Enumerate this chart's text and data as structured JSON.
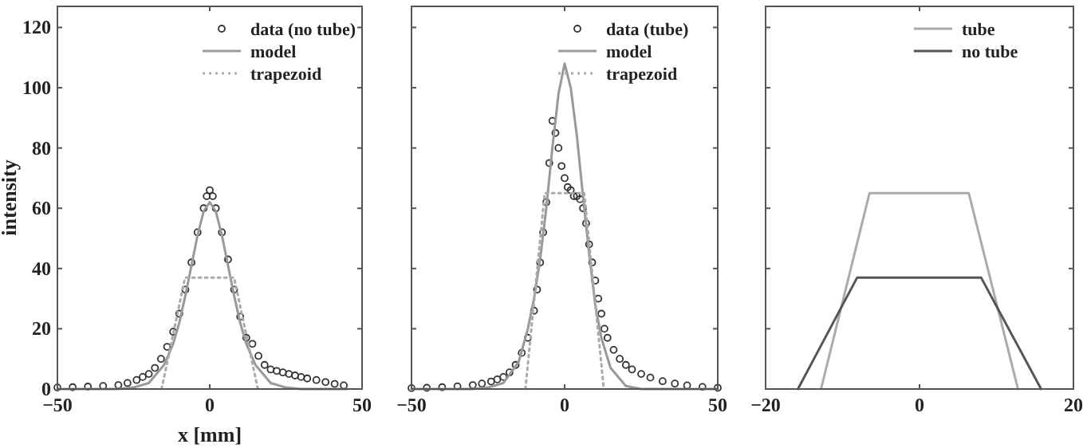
{
  "chart_data": [
    {
      "type": "scatter",
      "xlabel": "x [mm]",
      "ylabel": "intensity",
      "xlim": [
        -50,
        50
      ],
      "ylim": [
        0,
        127
      ],
      "xticks": [
        -50,
        0,
        50
      ],
      "yticks": [
        0,
        20,
        40,
        60,
        80,
        100,
        120
      ],
      "legend": "top right",
      "grid": false,
      "series": [
        {
          "name": "data (no tube)",
          "marker": "circle",
          "color": "#333333",
          "x": [
            -50,
            -45,
            -40,
            -35,
            -30,
            -27,
            -24,
            -22,
            -20,
            -18,
            -16,
            -14,
            -12,
            -10,
            -8,
            -6,
            -4,
            -2,
            -1,
            0,
            1,
            2,
            4,
            6,
            8,
            10,
            12,
            14,
            16,
            18,
            20,
            22,
            24,
            26,
            28,
            30,
            32,
            35,
            38,
            41,
            44
          ],
          "values": [
            0.5,
            0.6,
            0.8,
            1,
            1.3,
            2,
            3,
            4,
            5,
            7,
            10,
            14,
            19,
            25,
            33,
            42,
            52,
            60,
            64,
            66,
            64,
            60,
            52,
            43,
            33,
            24,
            17,
            15,
            11,
            8,
            6.5,
            6,
            5.5,
            5,
            4.5,
            4,
            3.5,
            3,
            2.3,
            1.7,
            1.2
          ]
        },
        {
          "name": "model",
          "type": "line",
          "line_style": "solid",
          "color": "#999999",
          "x": [
            -50,
            -30,
            -25,
            -20,
            -15,
            -12,
            -10,
            -8,
            -6,
            -4,
            -2,
            0,
            2,
            4,
            6,
            8,
            10,
            12,
            15,
            20,
            25,
            30,
            45
          ],
          "values": [
            0,
            0,
            0.5,
            2,
            8,
            15,
            22,
            31,
            41,
            51,
            59,
            62,
            59,
            51,
            41,
            31,
            22,
            15,
            8,
            2,
            0.5,
            0,
            0
          ]
        },
        {
          "name": "trapezoid",
          "type": "line",
          "line_style": "dotted",
          "color": "#aaaaaa",
          "x": [
            -15.8,
            -8.1,
            8,
            15.8
          ],
          "values": [
            0,
            37,
            37,
            0
          ]
        }
      ]
    },
    {
      "type": "scatter",
      "xlim": [
        -50,
        50
      ],
      "ylim": [
        0,
        127
      ],
      "xticks": [
        -50,
        0,
        50
      ],
      "yticks": [
        0,
        20,
        40,
        60,
        80,
        100,
        120
      ],
      "tick_labels": "x",
      "legend": "top right",
      "grid": false,
      "series": [
        {
          "name": "data (tube)",
          "marker": "circle",
          "color": "#333333",
          "x": [
            -50,
            -45,
            -40,
            -35,
            -30,
            -27,
            -24,
            -22,
            -20,
            -18,
            -16,
            -14,
            -12,
            -10,
            -9,
            -8,
            -7,
            -6,
            -5,
            -4,
            -3,
            -2,
            -1,
            0,
            1,
            2,
            3,
            4,
            5,
            6,
            7,
            8,
            9,
            10,
            11,
            12,
            13,
            14,
            16,
            18,
            20,
            22,
            25,
            28,
            32,
            36,
            40,
            45,
            50
          ],
          "values": [
            0.3,
            0.4,
            0.6,
            0.9,
            1.3,
            1.8,
            2.5,
            3.2,
            4,
            5.5,
            8,
            12,
            17,
            26,
            33,
            42,
            52,
            62,
            75,
            89,
            85,
            80,
            74,
            70,
            67,
            66,
            64,
            64,
            63,
            60,
            55,
            48,
            42,
            36,
            30,
            25,
            20,
            17,
            13,
            10,
            8,
            6.5,
            5,
            3.8,
            2.6,
            1.8,
            1.2,
            0.7,
            0.4
          ]
        },
        {
          "name": "model",
          "type": "line",
          "line_style": "solid",
          "color": "#999999",
          "x": [
            -50,
            -30,
            -25,
            -20,
            -15,
            -12,
            -10,
            -8,
            -6,
            -4,
            -2,
            0,
            2,
            4,
            6,
            8,
            10,
            12,
            15,
            20,
            25,
            30,
            50
          ],
          "values": [
            0,
            0,
            0.5,
            2,
            9,
            20,
            30,
            43,
            60,
            80,
            98,
            108,
            100,
            84,
            64,
            45,
            28,
            17,
            7,
            1,
            0,
            0,
            0
          ]
        },
        {
          "name": "trapezoid",
          "type": "line",
          "line_style": "dotted",
          "color": "#aaaaaa",
          "x": [
            -12.8,
            -6.5,
            6.4,
            12.8
          ],
          "values": [
            0,
            65,
            65,
            0
          ]
        }
      ]
    },
    {
      "type": "line",
      "xlim": [
        -20,
        20
      ],
      "ylim": [
        0,
        127
      ],
      "xticks": [
        -20,
        0,
        20
      ],
      "yticks": [
        0,
        20,
        40,
        60,
        80,
        100,
        120
      ],
      "tick_labels": "x",
      "legend": "top right",
      "grid": false,
      "series": [
        {
          "name": "tube",
          "color": "#aaaaaa",
          "line_style": "solid",
          "x": [
            -12.8,
            -6.5,
            6.4,
            12.8
          ],
          "values": [
            0,
            65,
            65,
            0
          ]
        },
        {
          "name": "no tube",
          "color": "#555555",
          "line_style": "solid",
          "x": [
            -15.8,
            -8.1,
            8,
            15.8
          ],
          "values": [
            0,
            37,
            37,
            0
          ]
        }
      ]
    }
  ]
}
